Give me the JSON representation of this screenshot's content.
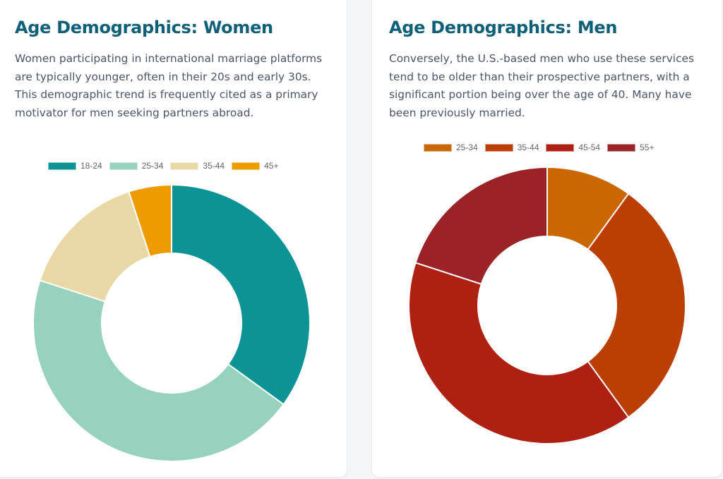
{
  "chart_data": [
    {
      "type": "pie",
      "variant": "doughnut",
      "title": "Age Demographics: Women",
      "description": "Women participating in international marriage platforms are typically younger, often in their 20s and early 30s. This demographic trend is frequently cited as a primary motivator for men seeking partners abroad.",
      "legend_position": "top",
      "categories": [
        "18-24",
        "25-34",
        "35-44",
        "45+"
      ],
      "values": [
        35,
        45,
        15,
        5
      ],
      "colors": [
        "#0b9396",
        "#96d2bd",
        "#e9d8a6",
        "#ee9b00"
      ]
    },
    {
      "type": "pie",
      "variant": "doughnut",
      "title": "Age Demographics: Men",
      "description": "Conversely, the U.S.-based men who use these services tend to be older than their prospective partners, with a significant portion being over the age of 40. Many have been previously married.",
      "legend_position": "top",
      "categories": [
        "25-34",
        "35-44",
        "45-54",
        "55+"
      ],
      "values": [
        10,
        30,
        40,
        20
      ],
      "colors": [
        "#ca6702",
        "#bb3e03",
        "#ae2012",
        "#9b2226"
      ]
    }
  ]
}
